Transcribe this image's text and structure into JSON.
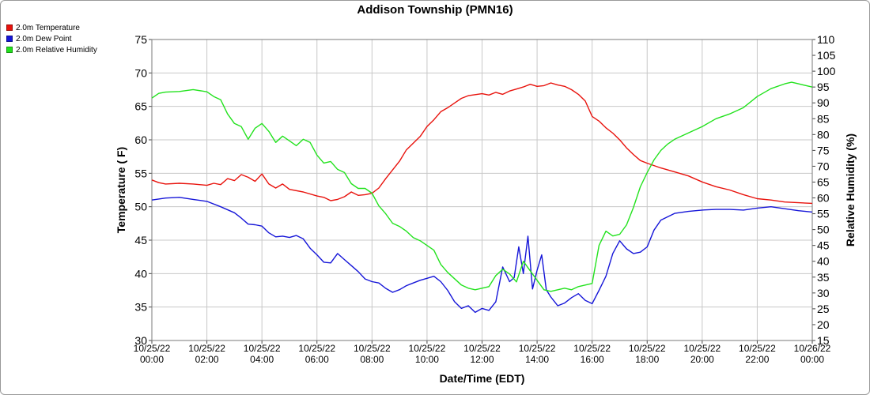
{
  "chart_data": {
    "type": "line",
    "title": "Addison Township (PMN16)",
    "xlabel": "Date/Time (EDT)",
    "ylabel": "Temperature ( F)",
    "y2label": "Relative Humidity (%)",
    "ylim": [
      30,
      75
    ],
    "y_ticks": [
      30,
      35,
      40,
      45,
      50,
      55,
      60,
      65,
      70,
      75
    ],
    "y2lim": [
      15,
      110
    ],
    "y2_ticks": [
      15,
      20,
      25,
      30,
      35,
      40,
      45,
      50,
      55,
      60,
      65,
      70,
      75,
      80,
      85,
      90,
      95,
      100,
      105,
      110
    ],
    "xlim": [
      "10/25/22 00:00",
      "10/26/22 00:00"
    ],
    "x_ticks": [
      {
        "date": "10/25/22",
        "time": "00:00"
      },
      {
        "date": "10/25/22",
        "time": "02:00"
      },
      {
        "date": "10/25/22",
        "time": "04:00"
      },
      {
        "date": "10/25/22",
        "time": "06:00"
      },
      {
        "date": "10/25/22",
        "time": "08:00"
      },
      {
        "date": "10/25/22",
        "time": "10:00"
      },
      {
        "date": "10/25/22",
        "time": "12:00"
      },
      {
        "date": "10/25/22",
        "time": "14:00"
      },
      {
        "date": "10/25/22",
        "time": "16:00"
      },
      {
        "date": "10/25/22",
        "time": "18:00"
      },
      {
        "date": "10/25/22",
        "time": "20:00"
      },
      {
        "date": "10/25/22",
        "time": "22:00"
      },
      {
        "date": "10/26/22",
        "time": "00:00"
      }
    ],
    "grid": true,
    "legend_position": "top-left",
    "series": [
      {
        "name": "2.0m Temperature",
        "axis": "left",
        "color": "#e8120c",
        "points": [
          [
            "00:00",
            54.0
          ],
          [
            "00:15",
            53.6
          ],
          [
            "00:30",
            53.4
          ],
          [
            "01:00",
            53.5
          ],
          [
            "01:30",
            53.4
          ],
          [
            "02:00",
            53.2
          ],
          [
            "02:15",
            53.5
          ],
          [
            "02:30",
            53.3
          ],
          [
            "02:45",
            54.2
          ],
          [
            "03:00",
            53.9
          ],
          [
            "03:15",
            54.8
          ],
          [
            "03:30",
            54.4
          ],
          [
            "03:45",
            53.8
          ],
          [
            "04:00",
            54.9
          ],
          [
            "04:15",
            53.4
          ],
          [
            "04:30",
            52.8
          ],
          [
            "04:45",
            53.4
          ],
          [
            "05:00",
            52.6
          ],
          [
            "05:30",
            52.2
          ],
          [
            "06:00",
            51.6
          ],
          [
            "06:15",
            51.4
          ],
          [
            "06:30",
            50.9
          ],
          [
            "06:45",
            51.1
          ],
          [
            "07:00",
            51.5
          ],
          [
            "07:15",
            52.2
          ],
          [
            "07:30",
            51.7
          ],
          [
            "07:45",
            51.8
          ],
          [
            "08:00",
            52.0
          ],
          [
            "08:15",
            52.8
          ],
          [
            "08:30",
            54.2
          ],
          [
            "08:45",
            55.5
          ],
          [
            "09:00",
            56.8
          ],
          [
            "09:15",
            58.5
          ],
          [
            "09:30",
            59.5
          ],
          [
            "09:45",
            60.5
          ],
          [
            "10:00",
            62.0
          ],
          [
            "10:15",
            63.0
          ],
          [
            "10:30",
            64.2
          ],
          [
            "10:45",
            64.8
          ],
          [
            "11:00",
            65.5
          ],
          [
            "11:15",
            66.2
          ],
          [
            "11:30",
            66.6
          ],
          [
            "12:00",
            66.9
          ],
          [
            "12:15",
            66.7
          ],
          [
            "12:30",
            67.1
          ],
          [
            "12:45",
            66.8
          ],
          [
            "13:00",
            67.3
          ],
          [
            "13:15",
            67.6
          ],
          [
            "13:30",
            67.9
          ],
          [
            "13:45",
            68.3
          ],
          [
            "14:00",
            68.0
          ],
          [
            "14:15",
            68.1
          ],
          [
            "14:30",
            68.5
          ],
          [
            "14:45",
            68.2
          ],
          [
            "15:00",
            68.0
          ],
          [
            "15:15",
            67.5
          ],
          [
            "15:30",
            66.8
          ],
          [
            "15:45",
            65.8
          ],
          [
            "16:00",
            63.5
          ],
          [
            "16:15",
            62.8
          ],
          [
            "16:30",
            61.8
          ],
          [
            "16:45",
            61.0
          ],
          [
            "17:00",
            60.0
          ],
          [
            "17:15",
            58.8
          ],
          [
            "17:30",
            57.8
          ],
          [
            "17:45",
            56.9
          ],
          [
            "18:00",
            56.5
          ],
          [
            "18:30",
            55.8
          ],
          [
            "19:00",
            55.2
          ],
          [
            "19:30",
            54.6
          ],
          [
            "20:00",
            53.7
          ],
          [
            "20:30",
            53.0
          ],
          [
            "21:00",
            52.5
          ],
          [
            "21:30",
            51.8
          ],
          [
            "22:00",
            51.2
          ],
          [
            "22:30",
            51.0
          ],
          [
            "23:00",
            50.7
          ],
          [
            "23:30",
            50.6
          ],
          [
            "24:00",
            50.5
          ]
        ]
      },
      {
        "name": "2.0m Dew Point",
        "axis": "left",
        "color": "#1515d8",
        "points": [
          [
            "00:00",
            51.0
          ],
          [
            "00:30",
            51.3
          ],
          [
            "01:00",
            51.4
          ],
          [
            "01:30",
            51.1
          ],
          [
            "02:00",
            50.8
          ],
          [
            "02:30",
            50.0
          ],
          [
            "03:00",
            49.1
          ],
          [
            "03:15",
            48.3
          ],
          [
            "03:30",
            47.4
          ],
          [
            "03:45",
            47.3
          ],
          [
            "04:00",
            47.1
          ],
          [
            "04:15",
            46.1
          ],
          [
            "04:30",
            45.5
          ],
          [
            "04:45",
            45.6
          ],
          [
            "05:00",
            45.4
          ],
          [
            "05:15",
            45.7
          ],
          [
            "05:30",
            45.2
          ],
          [
            "05:45",
            43.8
          ],
          [
            "06:00",
            42.8
          ],
          [
            "06:15",
            41.7
          ],
          [
            "06:30",
            41.6
          ],
          [
            "06:45",
            43.0
          ],
          [
            "07:00",
            42.1
          ],
          [
            "07:15",
            41.2
          ],
          [
            "07:30",
            40.3
          ],
          [
            "07:45",
            39.2
          ],
          [
            "08:00",
            38.8
          ],
          [
            "08:15",
            38.6
          ],
          [
            "08:30",
            37.8
          ],
          [
            "08:45",
            37.2
          ],
          [
            "09:00",
            37.6
          ],
          [
            "09:15",
            38.2
          ],
          [
            "09:30",
            38.6
          ],
          [
            "09:45",
            39.0
          ],
          [
            "10:00",
            39.3
          ],
          [
            "10:15",
            39.6
          ],
          [
            "10:30",
            38.8
          ],
          [
            "10:45",
            37.5
          ],
          [
            "11:00",
            35.8
          ],
          [
            "11:15",
            34.8
          ],
          [
            "11:30",
            35.2
          ],
          [
            "11:45",
            34.2
          ],
          [
            "12:00",
            34.8
          ],
          [
            "12:15",
            34.5
          ],
          [
            "12:30",
            35.8
          ],
          [
            "12:45",
            41.0
          ],
          [
            "13:00",
            38.8
          ],
          [
            "13:10",
            39.4
          ],
          [
            "13:20",
            44.0
          ],
          [
            "13:30",
            40.0
          ],
          [
            "13:40",
            45.6
          ],
          [
            "13:50",
            37.7
          ],
          [
            "14:00",
            40.5
          ],
          [
            "14:10",
            42.8
          ],
          [
            "14:20",
            37.6
          ],
          [
            "14:30",
            36.5
          ],
          [
            "14:45",
            35.2
          ],
          [
            "15:00",
            35.6
          ],
          [
            "15:15",
            36.4
          ],
          [
            "15:30",
            37.0
          ],
          [
            "15:45",
            36.0
          ],
          [
            "16:00",
            35.5
          ],
          [
            "16:15",
            37.5
          ],
          [
            "16:30",
            39.6
          ],
          [
            "16:45",
            43.0
          ],
          [
            "17:00",
            44.9
          ],
          [
            "17:15",
            43.7
          ],
          [
            "17:30",
            43.0
          ],
          [
            "17:45",
            43.2
          ],
          [
            "18:00",
            44.0
          ],
          [
            "18:15",
            46.5
          ],
          [
            "18:30",
            48.0
          ],
          [
            "19:00",
            49.0
          ],
          [
            "19:30",
            49.3
          ],
          [
            "20:00",
            49.5
          ],
          [
            "20:30",
            49.6
          ],
          [
            "21:00",
            49.6
          ],
          [
            "21:30",
            49.5
          ],
          [
            "22:00",
            49.8
          ],
          [
            "22:30",
            50.0
          ],
          [
            "23:00",
            49.7
          ],
          [
            "23:30",
            49.4
          ],
          [
            "24:00",
            49.2
          ]
        ]
      },
      {
        "name": "2.0m Relative Humidity",
        "axis": "right",
        "color": "#22e21d",
        "points": [
          [
            "00:00",
            91.5
          ],
          [
            "00:15",
            93.0
          ],
          [
            "00:30",
            93.4
          ],
          [
            "01:00",
            93.6
          ],
          [
            "01:30",
            94.2
          ],
          [
            "02:00",
            93.5
          ],
          [
            "02:15",
            92.0
          ],
          [
            "02:30",
            91.0
          ],
          [
            "02:45",
            86.5
          ],
          [
            "03:00",
            83.5
          ],
          [
            "03:15",
            82.5
          ],
          [
            "03:30",
            78.5
          ],
          [
            "03:45",
            82.0
          ],
          [
            "04:00",
            83.5
          ],
          [
            "04:15",
            81.0
          ],
          [
            "04:30",
            77.5
          ],
          [
            "04:45",
            79.5
          ],
          [
            "05:00",
            78.0
          ],
          [
            "05:15",
            76.5
          ],
          [
            "05:30",
            78.5
          ],
          [
            "05:45",
            77.5
          ],
          [
            "06:00",
            73.5
          ],
          [
            "06:15",
            71.0
          ],
          [
            "06:30",
            71.5
          ],
          [
            "06:45",
            69.0
          ],
          [
            "07:00",
            68.0
          ],
          [
            "07:15",
            64.5
          ],
          [
            "07:30",
            63.0
          ],
          [
            "07:45",
            63.0
          ],
          [
            "08:00",
            61.5
          ],
          [
            "08:15",
            57.5
          ],
          [
            "08:30",
            55.0
          ],
          [
            "08:45",
            52.0
          ],
          [
            "09:00",
            51.0
          ],
          [
            "09:15",
            49.5
          ],
          [
            "09:30",
            47.5
          ],
          [
            "09:45",
            46.5
          ],
          [
            "10:00",
            45.0
          ],
          [
            "10:15",
            43.5
          ],
          [
            "10:30",
            39.0
          ],
          [
            "10:45",
            36.5
          ],
          [
            "11:00",
            34.5
          ],
          [
            "11:15",
            32.5
          ],
          [
            "11:30",
            31.5
          ],
          [
            "11:45",
            31.0
          ],
          [
            "12:00",
            31.5
          ],
          [
            "12:15",
            32.0
          ],
          [
            "12:30",
            35.5
          ],
          [
            "12:45",
            37.5
          ],
          [
            "13:00",
            36.0
          ],
          [
            "13:15",
            33.5
          ],
          [
            "13:30",
            40.0
          ],
          [
            "13:45",
            37.0
          ],
          [
            "14:00",
            34.0
          ],
          [
            "14:15",
            31.0
          ],
          [
            "14:30",
            30.5
          ],
          [
            "14:45",
            31.0
          ],
          [
            "15:00",
            31.5
          ],
          [
            "15:15",
            31.0
          ],
          [
            "15:30",
            32.0
          ],
          [
            "15:45",
            32.5
          ],
          [
            "16:00",
            33.0
          ],
          [
            "16:15",
            45.0
          ],
          [
            "16:30",
            49.5
          ],
          [
            "16:45",
            48.0
          ],
          [
            "17:00",
            48.5
          ],
          [
            "17:15",
            51.5
          ],
          [
            "17:30",
            57.0
          ],
          [
            "17:45",
            63.5
          ],
          [
            "18:00",
            68.0
          ],
          [
            "18:15",
            72.0
          ],
          [
            "18:30",
            75.0
          ],
          [
            "18:45",
            77.0
          ],
          [
            "19:00",
            78.5
          ],
          [
            "19:30",
            80.5
          ],
          [
            "20:00",
            82.5
          ],
          [
            "20:30",
            85.0
          ],
          [
            "21:00",
            86.5
          ],
          [
            "21:30",
            88.5
          ],
          [
            "22:00",
            92.0
          ],
          [
            "22:30",
            94.5
          ],
          [
            "23:00",
            96.0
          ],
          [
            "23:15",
            96.5
          ],
          [
            "23:30",
            96.0
          ],
          [
            "24:00",
            95.0
          ]
        ]
      }
    ]
  }
}
